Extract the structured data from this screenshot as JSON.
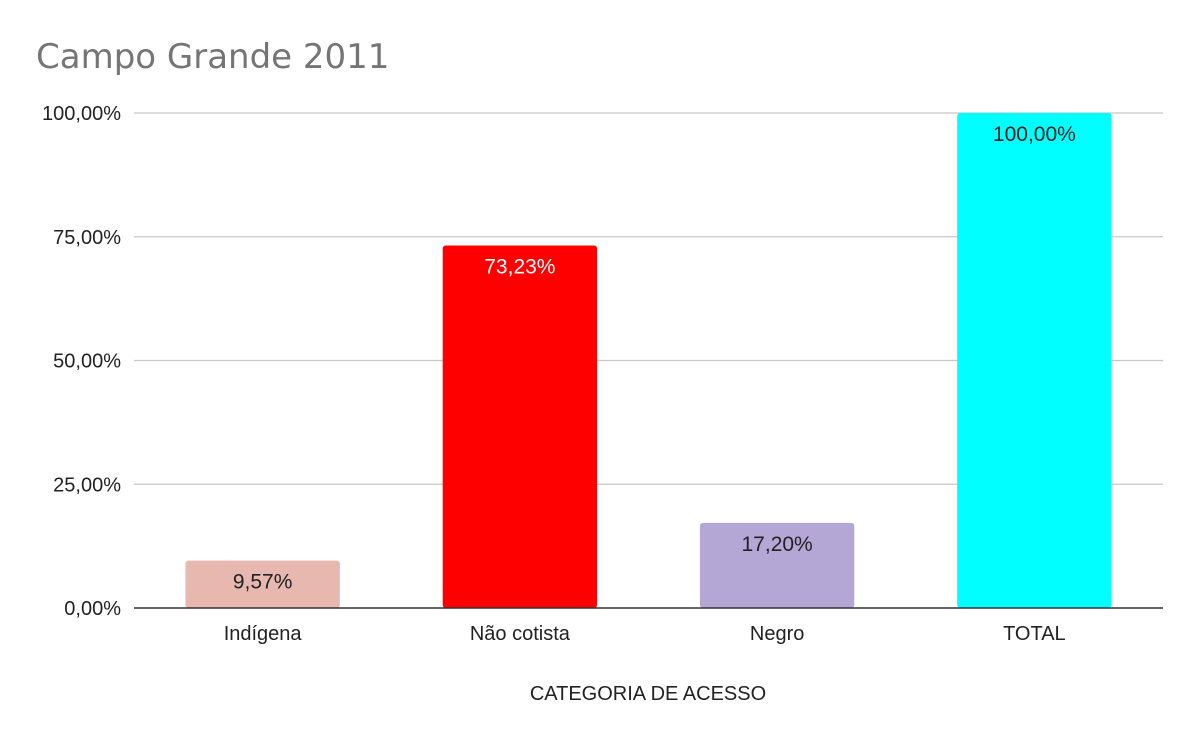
{
  "chart_data": {
    "type": "bar",
    "title": "Campo Grande 2011",
    "xlabel": "CATEGORIA DE ACESSO",
    "ylabel": "",
    "categories": [
      "Indígena",
      "Não cotista",
      "Negro",
      "TOTAL"
    ],
    "values": [
      9.57,
      73.23,
      17.2,
      100.0
    ],
    "value_labels": [
      "9,57%",
      "73,23%",
      "17,20%",
      "100,00%"
    ],
    "bar_colors": [
      "#e6b8af",
      "#ff0000",
      "#b4a7d6",
      "#00ffff"
    ],
    "label_colors": [
      "#222222",
      "#ffffff",
      "#222222",
      "#222222"
    ],
    "ylim": [
      0,
      100
    ],
    "yticks": [
      0,
      25,
      50,
      75,
      100
    ],
    "ytick_labels": [
      "0,00%",
      "25,00%",
      "50,00%",
      "75,00%",
      "100,00%"
    ],
    "grid": true,
    "legend": "none"
  }
}
